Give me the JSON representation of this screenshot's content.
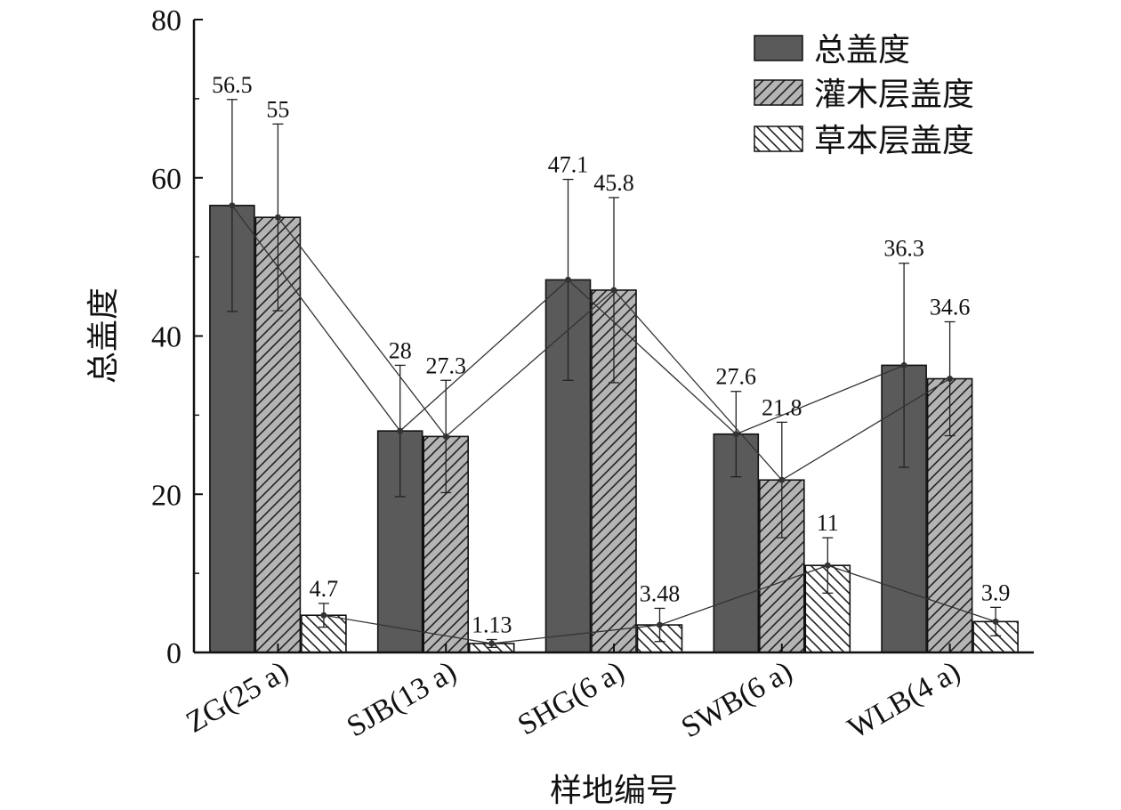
{
  "chart_data": {
    "type": "bar",
    "title": "",
    "xlabel": "样地编号",
    "ylabel": "总盖度",
    "ylim": [
      0,
      80
    ],
    "yticks": [
      "0",
      "20",
      "40",
      "60",
      "80"
    ],
    "categories": [
      "ZG(25 a)",
      "SJB(13 a)",
      "SHG(6 a)",
      "SWB(6 a)",
      "WLB(4 a)"
    ],
    "legend_position": "top-right",
    "grid": false,
    "series": [
      {
        "name": "总盖度",
        "color": "#5a5a5a",
        "pattern": "solid",
        "values": [
          56.5,
          28,
          47.1,
          27.6,
          36.3
        ],
        "labels": [
          "56.5",
          "28",
          "47.1",
          "27.6",
          "36.3"
        ],
        "error": [
          13.4,
          8.3,
          12.7,
          5.4,
          12.9
        ]
      },
      {
        "name": "灌木层盖度",
        "color": "#b4b4b4",
        "pattern": "hatch-forward",
        "values": [
          55,
          27.3,
          45.8,
          21.8,
          34.6
        ],
        "labels": [
          "55",
          "27.3",
          "45.8",
          "21.8",
          "34.6"
        ],
        "error": [
          11.8,
          7.1,
          11.7,
          7.3,
          7.2
        ]
      },
      {
        "name": "草本层盖度",
        "color": "#ffffff",
        "pattern": "hatch-back",
        "values": [
          4.7,
          1.13,
          3.48,
          11,
          3.9
        ],
        "labels": [
          "4.7",
          "1.13",
          "3.48",
          "11",
          "3.9"
        ],
        "error": [
          1.5,
          0.5,
          2.1,
          3.5,
          1.8
        ]
      }
    ]
  }
}
